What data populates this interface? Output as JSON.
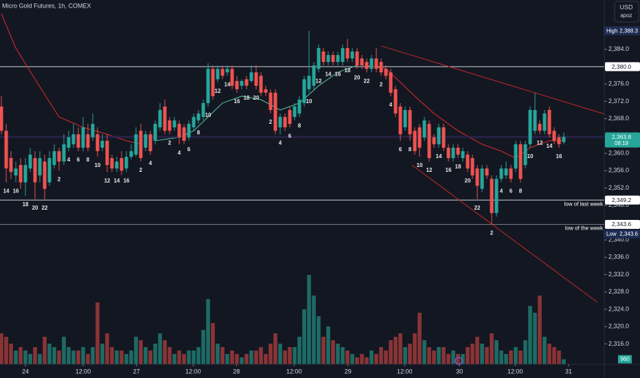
{
  "chart_data": {
    "type": "candlestick",
    "title": "Micro Gold Futures, 1h, COMEX",
    "currency": "USD",
    "profile": "apoz",
    "up_color": "#26a69a",
    "down_color": "#ef5350",
    "volume_up_color": "#1d6b65",
    "volume_down_color": "#8a3436",
    "xlim": [
      -0.29,
      125.43
    ],
    "ylim": [
      2311.3,
      2395.4
    ],
    "volume_lim": [
      0,
      70000
    ],
    "grid": false,
    "xticks": [
      {
        "value": 5,
        "label": "24"
      },
      {
        "value": 17,
        "label": "12:00"
      },
      {
        "value": 28.1,
        "label": "27"
      },
      {
        "value": 39.9,
        "label": "12:00"
      },
      {
        "value": 48.9,
        "label": "28"
      },
      {
        "value": 60.9,
        "label": "12:00"
      },
      {
        "value": 72.1,
        "label": "29"
      },
      {
        "value": 83.9,
        "label": "12:00"
      },
      {
        "value": 95.3,
        "label": "30"
      },
      {
        "value": 106.9,
        "label": "12:00"
      },
      {
        "value": 118,
        "label": "31"
      }
    ],
    "yticks": [
      {
        "value": 2384,
        "label": "2,384.0"
      },
      {
        "value": 2376,
        "label": "2,376.0"
      },
      {
        "value": 2372,
        "label": "2,372.0"
      },
      {
        "value": 2368,
        "label": "2,368.0"
      },
      {
        "value": 2360,
        "label": "2,360.0"
      },
      {
        "value": 2356,
        "label": "2,356.0"
      },
      {
        "value": 2352,
        "label": "2,352.0"
      },
      {
        "value": 2348,
        "label": "2,348.0"
      },
      {
        "value": 2340,
        "label": "2,340.0"
      },
      {
        "value": 2336,
        "label": "2,336.0"
      },
      {
        "value": 2332,
        "label": "2,332.0"
      },
      {
        "value": 2328,
        "label": "2,328.0"
      },
      {
        "value": 2324,
        "label": "2,324.0"
      },
      {
        "value": 2320,
        "label": "2,320.0"
      },
      {
        "value": 2316,
        "label": "2,316.0"
      }
    ],
    "open": [
      2370.8,
      2365.2,
      2358.9,
      2354.9,
      2357.3,
      2353.3,
      2356.5,
      2358.9,
      2354.9,
      2358.1,
      2353.3,
      2357.3,
      2360.5,
      2358.1,
      2361.3,
      2362.1,
      2364.4,
      2361.3,
      2364.4,
      2363.7,
      2364.4,
      2361.3,
      2362.9,
      2358.9,
      2356.5,
      2358.9,
      2356.5,
      2359.2,
      2359.7,
      2365.2,
      2361.3,
      2364.4,
      2362.9,
      2366.0,
      2370.8,
      2367.6,
      2366.0,
      2366.8,
      2366.0,
      2363.7,
      2366.0,
      2367.6,
      2368.4,
      2371.6,
      2379.5,
      2377.1,
      2379.5,
      2378.7,
      2379.5,
      2376.7,
      2375.6,
      2377.1,
      2376.7,
      2378.7,
      2377.9,
      2374.8,
      2374.0,
      2374.0,
      2366.0,
      2368.4,
      2370.0,
      2368.4,
      2369.2,
      2371.6,
      2374.8,
      2375.6,
      2379.5,
      2383.5,
      2381.1,
      2382.7,
      2381.1,
      2381.1,
      2384.3,
      2381.9,
      2383.5,
      2381.9,
      2381.1,
      2379.5,
      2381.9,
      2381.1,
      2379.5,
      2378.7,
      2374.8,
      2370.8,
      2366.0,
      2370.0,
      2365.2,
      2366.0,
      2363.7,
      2366.8,
      2363.7,
      2362.1,
      2366.0,
      2361.3,
      2358.9,
      2361.3,
      2358.9,
      2359.7,
      2358.9,
      2356.5,
      2351.8,
      2356.5,
      2354.1,
      2346.2,
      2354.1,
      2354.9,
      2356.5,
      2356.5,
      2362.1,
      2357.3,
      2362.1,
      2365.2,
      2366.8,
      2365.2,
      2370.0,
      2365.2,
      2363.7,
      2362.6
    ],
    "high": [
      2373.2,
      2366.8,
      2360.5,
      2358.1,
      2358.9,
      2358.9,
      2361.3,
      2360.5,
      2360.5,
      2359.7,
      2360.5,
      2362.1,
      2361.3,
      2364.4,
      2365.2,
      2366.8,
      2366.0,
      2368.4,
      2366.8,
      2369.2,
      2366.0,
      2364.4,
      2364.4,
      2359.7,
      2359.2,
      2360.5,
      2360.5,
      2362.1,
      2366.0,
      2366.8,
      2365.2,
      2365.2,
      2367.6,
      2371.6,
      2372.4,
      2368.4,
      2368.4,
      2367.6,
      2366.8,
      2367.6,
      2369.2,
      2370.0,
      2372.4,
      2380.8,
      2380.3,
      2380.3,
      2380.3,
      2380.3,
      2380.3,
      2377.9,
      2377.1,
      2377.9,
      2380.3,
      2380.3,
      2378.7,
      2375.6,
      2374.8,
      2374.8,
      2369.2,
      2369.2,
      2370.8,
      2371.6,
      2373.2,
      2377.9,
      2388.3,
      2381.1,
      2385.1,
      2384.3,
      2383.5,
      2383.5,
      2383.5,
      2385.1,
      2386.4,
      2384.3,
      2384.3,
      2382.7,
      2381.9,
      2382.7,
      2384.3,
      2381.9,
      2380.3,
      2379.5,
      2375.6,
      2371.6,
      2370.8,
      2370.8,
      2366.0,
      2366.8,
      2368.4,
      2367.6,
      2364.4,
      2366.8,
      2366.8,
      2362.1,
      2362.1,
      2362.1,
      2361.3,
      2360.5,
      2359.7,
      2357.3,
      2357.3,
      2357.3,
      2354.9,
      2354.9,
      2357.3,
      2358.1,
      2357.3,
      2362.9,
      2362.9,
      2362.9,
      2370.8,
      2374.0,
      2367.6,
      2370.0,
      2370.8,
      2366.0,
      2364.4,
      2364.8
    ],
    "low": [
      2364.4,
      2353.3,
      2354.1,
      2353.3,
      2351.8,
      2350.2,
      2355.7,
      2349.4,
      2353.3,
      2349.4,
      2352.5,
      2356.5,
      2356.0,
      2357.3,
      2360.5,
      2361.3,
      2360.5,
      2360.5,
      2360.5,
      2362.9,
      2359.2,
      2360.5,
      2355.7,
      2355.7,
      2355.7,
      2355.0,
      2355.7,
      2358.6,
      2359.2,
      2358.1,
      2360.5,
      2359.7,
      2362.1,
      2365.2,
      2364.4,
      2364.4,
      2365.2,
      2362.1,
      2362.1,
      2362.9,
      2365.2,
      2366.8,
      2367.6,
      2370.8,
      2372.4,
      2376.4,
      2377.1,
      2377.9,
      2374.8,
      2374.0,
      2374.8,
      2374.8,
      2376.4,
      2374.8,
      2373.2,
      2373.2,
      2369.2,
      2364.4,
      2364.4,
      2365.2,
      2366.0,
      2367.6,
      2368.4,
      2370.8,
      2374.0,
      2374.8,
      2378.7,
      2380.3,
      2380.3,
      2380.3,
      2380.3,
      2380.3,
      2381.1,
      2381.1,
      2379.5,
      2379.5,
      2378.7,
      2378.7,
      2378.7,
      2377.9,
      2377.1,
      2373.2,
      2368.4,
      2362.9,
      2365.2,
      2362.9,
      2359.7,
      2359.2,
      2362.9,
      2358.1,
      2361.3,
      2361.3,
      2360.5,
      2358.1,
      2358.1,
      2358.9,
      2358.1,
      2355.7,
      2354.1,
      2349.4,
      2351.0,
      2354.1,
      2343.6,
      2345.4,
      2353.3,
      2354.1,
      2353.3,
      2355.7,
      2353.3,
      2356.5,
      2361.3,
      2364.4,
      2364.4,
      2364.4,
      2363.7,
      2362.1,
      2361.3,
      2362.1
    ],
    "close": [
      2365.2,
      2356.5,
      2355.7,
      2356.5,
      2353.3,
      2357.3,
      2359.7,
      2353.3,
      2358.9,
      2351.8,
      2358.9,
      2360.5,
      2358.1,
      2362.1,
      2363.7,
      2364.4,
      2361.3,
      2366.0,
      2361.3,
      2366.8,
      2360.5,
      2362.9,
      2357.3,
      2356.5,
      2358.1,
      2356.0,
      2359.2,
      2360.5,
      2364.4,
      2358.9,
      2364.4,
      2360.5,
      2366.8,
      2370.0,
      2365.2,
      2365.2,
      2367.6,
      2363.7,
      2362.9,
      2366.8,
      2368.4,
      2369.2,
      2371.6,
      2379.5,
      2373.2,
      2379.5,
      2377.9,
      2379.5,
      2375.6,
      2374.8,
      2376.7,
      2375.6,
      2378.7,
      2375.6,
      2374.0,
      2374.0,
      2370.0,
      2365.2,
      2368.4,
      2366.0,
      2366.8,
      2370.8,
      2372.4,
      2377.1,
      2377.9,
      2380.3,
      2384.3,
      2381.1,
      2382.7,
      2381.1,
      2382.7,
      2384.3,
      2381.9,
      2383.5,
      2380.3,
      2380.3,
      2379.5,
      2381.9,
      2379.5,
      2378.7,
      2377.9,
      2374.0,
      2369.2,
      2364.4,
      2370.0,
      2364.4,
      2360.5,
      2361.3,
      2367.6,
      2358.9,
      2362.1,
      2366.0,
      2361.3,
      2358.9,
      2361.3,
      2359.7,
      2360.5,
      2356.5,
      2354.9,
      2352.5,
      2356.5,
      2354.9,
      2346.2,
      2354.1,
      2356.5,
      2356.5,
      2354.1,
      2362.1,
      2354.1,
      2362.1,
      2370.0,
      2370.0,
      2365.2,
      2369.2,
      2364.4,
      2362.9,
      2362.1,
      2363.8
    ],
    "volume": [
      5940,
      5280,
      3960,
      2640,
      3300,
      2640,
      1980,
      3300,
      1980,
      5280,
      3960,
      3300,
      2640,
      5280,
      3300,
      2640,
      2640,
      3300,
      1980,
      3300,
      11880,
      3960,
      5940,
      3300,
      2640,
      2640,
      1980,
      2640,
      5280,
      4620,
      3300,
      2640,
      3960,
      5940,
      4620,
      3300,
      1980,
      2640,
      1980,
      2640,
      2640,
      3300,
      6600,
      12540,
      7920,
      3960,
      3300,
      1980,
      2640,
      1980,
      1320,
      1980,
      2640,
      2640,
      3300,
      1980,
      3960,
      5940,
      3960,
      2640,
      3300,
      3300,
      5280,
      10560,
      17160,
      13200,
      9240,
      5280,
      7260,
      4620,
      3960,
      3300,
      2640,
      1980,
      1320,
      1980,
      1320,
      2640,
      1980,
      3300,
      2640,
      4620,
      5280,
      5940,
      3300,
      3960,
      5940,
      9900,
      4620,
      3300,
      2640,
      3300,
      3300,
      1980,
      2640,
      1980,
      1980,
      3300,
      3960,
      5280,
      3960,
      3300,
      5940,
      4620,
      2640,
      1980,
      2640,
      3300,
      2640,
      4620,
      11220,
      9900,
      13200,
      5280,
      3960,
      3300,
      2640,
      960
    ],
    "indicators": [
      {
        "color": "#c62828",
        "x": [
          0,
          3,
          7,
          12,
          17,
          22,
          26,
          29
        ],
        "values": [
          2392.2,
          2384.3,
          2377.1,
          2368.4,
          2366.0,
          2364.4,
          2362.9,
          2362.1
        ]
      },
      {
        "color": "#4caf8f",
        "x": [
          32,
          37,
          40,
          43,
          46,
          50,
          54,
          58,
          62,
          66,
          70,
          74
        ],
        "values": [
          2362.9,
          2363.7,
          2365.2,
          2368.4,
          2371.6,
          2373.2,
          2372.4,
          2370.0,
          2371.6,
          2375.6,
          2378.7,
          2380.3
        ]
      },
      {
        "color": "#c62828",
        "x": [
          76,
          80,
          83,
          86,
          90,
          95,
          100,
          104,
          107,
          110,
          114,
          117
        ],
        "values": [
          2380.3,
          2379.5,
          2376.4,
          2373.2,
          2369.2,
          2365.2,
          2362.1,
          2360.5,
          2358.9,
          2361.3,
          2362.9,
          2362.9
        ]
      }
    ],
    "trendlines": [
      {
        "color": "#c62828",
        "x": [
          79,
          125.4
        ],
        "values": [
          2384.8,
          2369.1
        ]
      },
      {
        "color": "#c62828",
        "x": [
          85.4,
          124
        ],
        "values": [
          2357.3,
          2325.6
        ]
      }
    ],
    "hlines": [
      {
        "value": 2380.0,
        "color": "#d1d4dc"
      },
      {
        "value": 2349.2,
        "color": "#d1d4dc",
        "text": "low of last week"
      },
      {
        "value": 2343.6,
        "color": "#787b86",
        "text": "low of the week"
      }
    ],
    "price_tags": [
      {
        "value": 2388.3,
        "label": "2,388.3",
        "title": "High",
        "bg": "#1e2c52",
        "fg": "#ffffff"
      },
      {
        "value": 2380.0,
        "label": "2,380.0",
        "bg": "#ffffff",
        "fg": "#131722"
      },
      {
        "value": 2363.8,
        "label": "2,363.8",
        "countdown": "08:19",
        "bg": "#26a69a",
        "fg": "#ffffff"
      },
      {
        "value": 2349.2,
        "label": "2,349.2",
        "bg": "#ffffff",
        "fg": "#131722"
      },
      {
        "value": 2343.6,
        "label": "2,343.6",
        "bg": "#ffffff",
        "fg": "#131722"
      },
      {
        "value": 2343.6,
        "label": "2,343.6",
        "title": "Low",
        "bg": "#1e2c52",
        "fg": "#ffffff"
      }
    ],
    "hour_labels": [
      {
        "text": "14",
        "candle": 1
      },
      {
        "text": "16",
        "candle": 3
      },
      {
        "text": "18",
        "candle": 5
      },
      {
        "text": "20",
        "candle": 7
      },
      {
        "text": "22",
        "candle": 9
      },
      {
        "text": "2",
        "candle": 12
      },
      {
        "text": "4",
        "candle": 14
      },
      {
        "text": "6",
        "candle": 16
      },
      {
        "text": "8",
        "candle": 18
      },
      {
        "text": "10",
        "candle": 20
      },
      {
        "text": "12",
        "candle": 22
      },
      {
        "text": "14",
        "candle": 24
      },
      {
        "text": "16",
        "candle": 26
      },
      {
        "text": "2",
        "candle": 29
      },
      {
        "text": "4",
        "candle": 31
      },
      {
        "text": "2",
        "candle": 35
      },
      {
        "text": "4",
        "candle": 37
      },
      {
        "text": "6",
        "candle": 39
      },
      {
        "text": "8",
        "candle": 41
      },
      {
        "text": "10",
        "candle": 43
      },
      {
        "text": "12",
        "candle": 45
      },
      {
        "text": "14",
        "candle": 47
      },
      {
        "text": "16",
        "candle": 49
      },
      {
        "text": "18",
        "candle": 51
      },
      {
        "text": "20",
        "candle": 53
      },
      {
        "text": "2",
        "candle": 56
      },
      {
        "text": "4",
        "candle": 58
      },
      {
        "text": "6",
        "candle": 60
      },
      {
        "text": "8",
        "candle": 62
      },
      {
        "text": "10",
        "candle": 64
      },
      {
        "text": "12",
        "candle": 66
      },
      {
        "text": "14",
        "candle": 68
      },
      {
        "text": "16",
        "candle": 70
      },
      {
        "text": "18",
        "candle": 72
      },
      {
        "text": "20",
        "candle": 74
      },
      {
        "text": "22",
        "candle": 76
      },
      {
        "text": "2",
        "candle": 79
      },
      {
        "text": "4",
        "candle": 81
      },
      {
        "text": "6",
        "candle": 83
      },
      {
        "text": "8",
        "candle": 85
      },
      {
        "text": "10",
        "candle": 87
      },
      {
        "text": "12",
        "candle": 89
      },
      {
        "text": "14",
        "candle": 91
      },
      {
        "text": "16",
        "candle": 93
      },
      {
        "text": "18",
        "candle": 95
      },
      {
        "text": "20",
        "candle": 97
      },
      {
        "text": "22",
        "candle": 99
      },
      {
        "text": "2",
        "candle": 102
      },
      {
        "text": "4",
        "candle": 104
      },
      {
        "text": "6",
        "candle": 106
      },
      {
        "text": "8",
        "candle": 108
      },
      {
        "text": "10",
        "candle": 110
      },
      {
        "text": "12",
        "candle": 112
      },
      {
        "text": "14",
        "candle": 114
      },
      {
        "text": "16",
        "candle": 116
      }
    ]
  }
}
